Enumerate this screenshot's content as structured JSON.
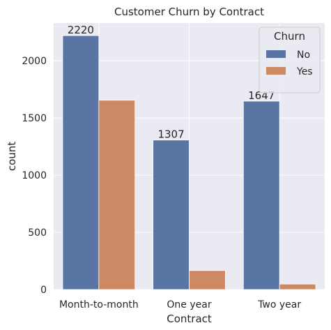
{
  "chart_data": {
    "type": "bar",
    "title": "Customer Churn by Contract",
    "xlabel": "Contract",
    "ylabel": "count",
    "categories": [
      "Month-to-month",
      "One year",
      "Two year"
    ],
    "series": [
      {
        "name": "No",
        "values": [
          2220,
          1307,
          1647
        ],
        "color": "#5875a4",
        "show_labels": true
      },
      {
        "name": "Yes",
        "values": [
          1655,
          166,
          48
        ],
        "color": "#cc8963",
        "show_labels": false
      }
    ],
    "ylim": [
      0,
      2330
    ],
    "yticks": [
      0,
      500,
      1000,
      1500,
      2000
    ],
    "grid": true,
    "background": "#eaeaf2",
    "legend": {
      "title": "Churn",
      "position": "top-right"
    }
  }
}
